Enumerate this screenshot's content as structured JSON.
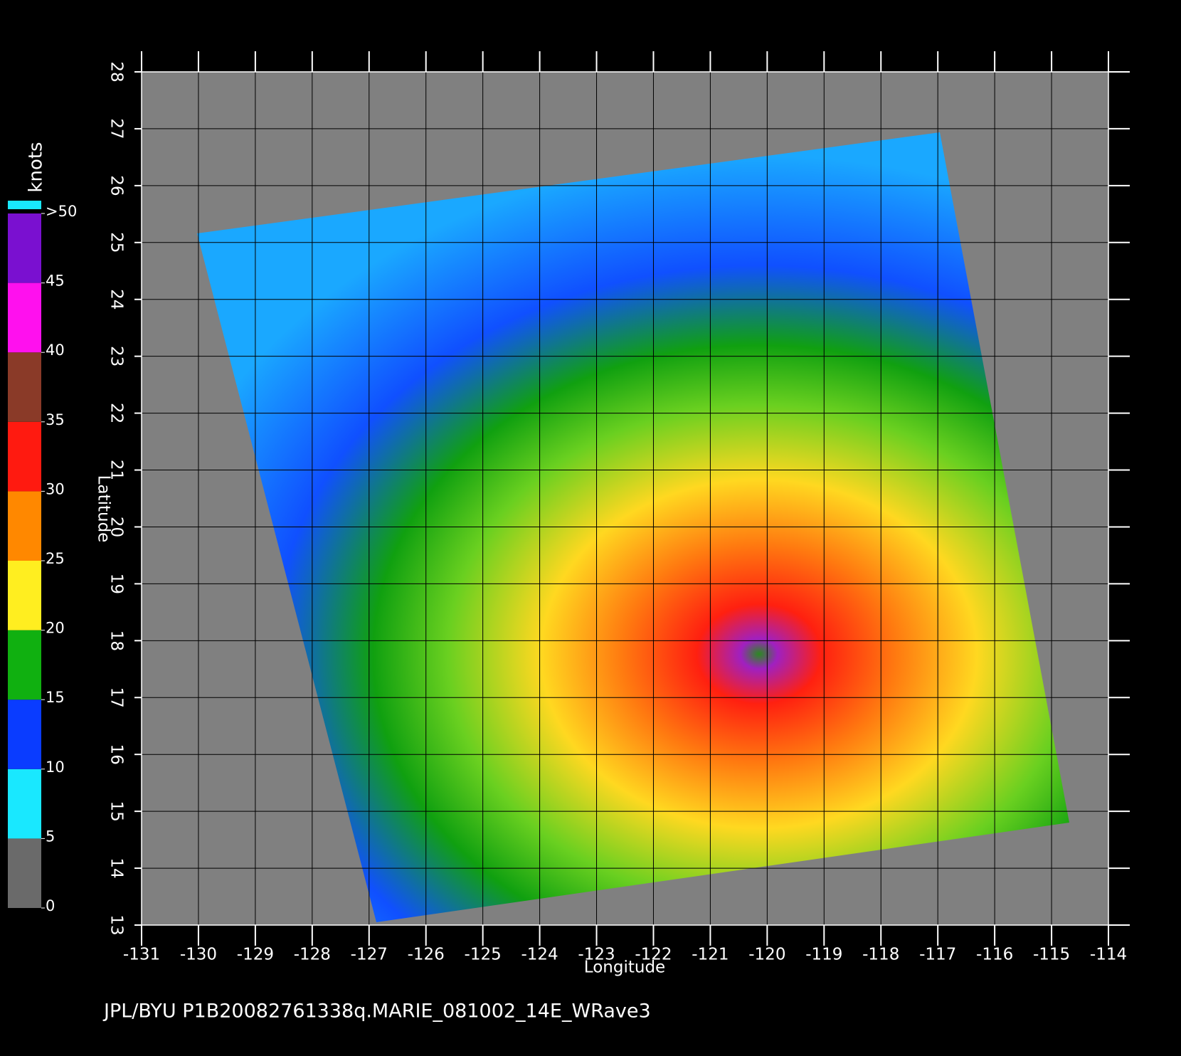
{
  "map": {
    "caption": "JPL/BYU  P1B20082761338q.MARIE_081002_14E_WRave3",
    "x_label": "Longitude",
    "y_label": "Latitude",
    "xlim": [
      -131,
      -114
    ],
    "ylim": [
      13,
      28
    ],
    "xticks": [
      -131,
      -130,
      -129,
      -128,
      -127,
      -126,
      -125,
      -124,
      -123,
      -122,
      -121,
      -120,
      -119,
      -118,
      -117,
      -116,
      -115,
      -114
    ],
    "yticks": [
      13,
      14,
      15,
      16,
      17,
      18,
      19,
      20,
      21,
      22,
      23,
      24,
      25,
      26,
      27,
      28
    ],
    "grid": true,
    "colorbar": {
      "unit": "knots",
      "range": [
        0,
        50
      ],
      "ticks": [
        0,
        5,
        10,
        15,
        20,
        25,
        30,
        35,
        40,
        45,
        {
          "value": 50,
          "label": ">50"
        }
      ],
      "colors": [
        "#6a6a6a",
        "#19e8ff",
        "#0a3cff",
        "#10b010",
        "#ffee20",
        "#ff8800",
        "#ff1a10",
        "#8a3a28",
        "#ff10ee",
        "#7a10d0"
      ]
    }
  }
}
